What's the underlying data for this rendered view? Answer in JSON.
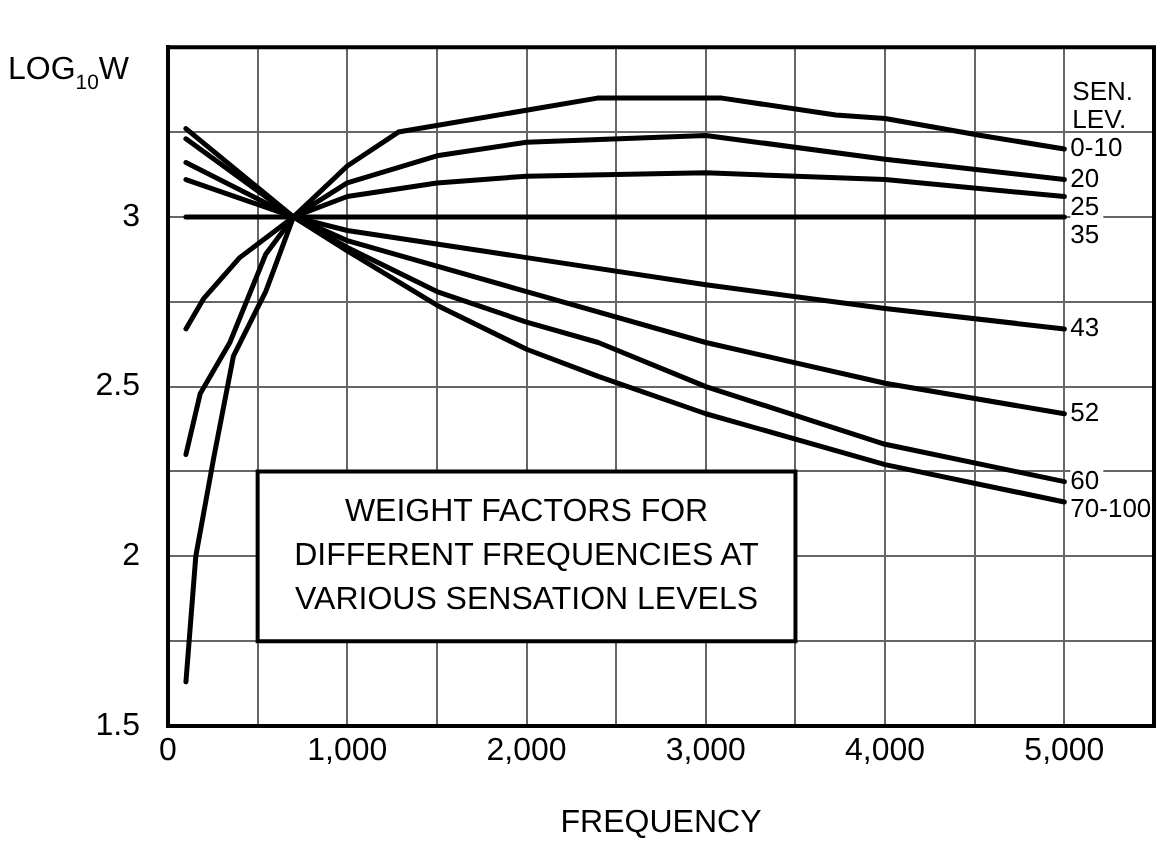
{
  "chart_data": {
    "type": "line",
    "title": "WEIGHT FACTORS FOR DIFFERENT FREQUENCIES AT VARIOUS SENSATION LEVELS",
    "xlabel": "FREQUENCY",
    "ylabel": "LOG$_{10}$W",
    "legend_title": "SEN. LEV.",
    "xlim": [
      0,
      5500
    ],
    "xticks": [
      0,
      {
        "value": 500,
        "label": null
      },
      {
        "value": 1000,
        "label": "1,000"
      },
      {
        "value": 1500,
        "label": null
      },
      {
        "value": 2000,
        "label": "2,000"
      },
      {
        "value": 2500,
        "label": null
      },
      {
        "value": 3000,
        "label": "3,000"
      },
      {
        "value": 3500,
        "label": null
      },
      {
        "value": 4000,
        "label": "4,000"
      },
      {
        "value": 4500,
        "label": null
      },
      {
        "value": 5000,
        "label": "5,000"
      }
    ],
    "ylim": [
      1.5,
      3.5
    ],
    "yticks": [
      1.5,
      {
        "value": 1.75,
        "label": null
      },
      2,
      {
        "value": 2.25,
        "label": null
      },
      2.5,
      {
        "value": 2.75,
        "label": null
      },
      3,
      {
        "value": 3.25,
        "label": null
      },
      {
        "value": 3.5,
        "label": null
      }
    ],
    "grid": true,
    "marker": "none",
    "line_style": "solid",
    "legend": false,
    "series": [
      {
        "name": "0-10",
        "color": "#000000",
        "x": [
          100,
          155,
          255,
          365,
          545,
          700,
          1000,
          1285,
          2395,
          3090,
          3725,
          4000,
          4535,
          5000
        ],
        "values": [
          1.63,
          2.0,
          2.29,
          2.59,
          2.78,
          3.0,
          3.15,
          3.25,
          3.35,
          3.35,
          3.3,
          3.29,
          3.24,
          3.2
        ]
      },
      {
        "name": "20",
        "color": "#000000",
        "x": [
          100,
          180,
          345,
          545,
          700,
          1000,
          1500,
          2000,
          3000,
          4000,
          5000
        ],
        "values": [
          2.3,
          2.48,
          2.63,
          2.89,
          3.0,
          3.1,
          3.18,
          3.22,
          3.24,
          3.17,
          3.11
        ]
      },
      {
        "name": "25",
        "color": "#000000",
        "x": [
          100,
          200,
          400,
          700,
          1000,
          1500,
          2000,
          3000,
          4000,
          5000
        ],
        "values": [
          2.67,
          2.76,
          2.88,
          3.0,
          3.06,
          3.1,
          3.12,
          3.13,
          3.11,
          3.06
        ]
      },
      {
        "name": "35",
        "color": "#000000",
        "x": [
          100,
          5000
        ],
        "values": [
          3.0,
          3.0
        ]
      },
      {
        "name": "43",
        "color": "#000000",
        "x": [
          100,
          700,
          1000,
          2000,
          3000,
          4000,
          5000
        ],
        "values": [
          3.11,
          3.0,
          2.96,
          2.88,
          2.8,
          2.73,
          2.67
        ]
      },
      {
        "name": "52",
        "color": "#000000",
        "x": [
          100,
          700,
          1000,
          2000,
          3000,
          4000,
          5000
        ],
        "values": [
          3.16,
          3.0,
          2.93,
          2.78,
          2.63,
          2.51,
          2.42
        ]
      },
      {
        "name": "60",
        "color": "#000000",
        "x": [
          100,
          700,
          1000,
          1500,
          2000,
          2400,
          3000,
          4000,
          5000
        ],
        "values": [
          3.23,
          3.0,
          2.91,
          2.78,
          2.69,
          2.63,
          2.5,
          2.33,
          2.22
        ]
      },
      {
        "name": "70-100",
        "color": "#000000",
        "x": [
          100,
          700,
          1000,
          1500,
          2000,
          2400,
          3000,
          4000,
          5000
        ],
        "values": [
          3.26,
          3.0,
          2.9,
          2.74,
          2.61,
          2.53,
          2.42,
          2.27,
          2.16
        ]
      }
    ]
  }
}
